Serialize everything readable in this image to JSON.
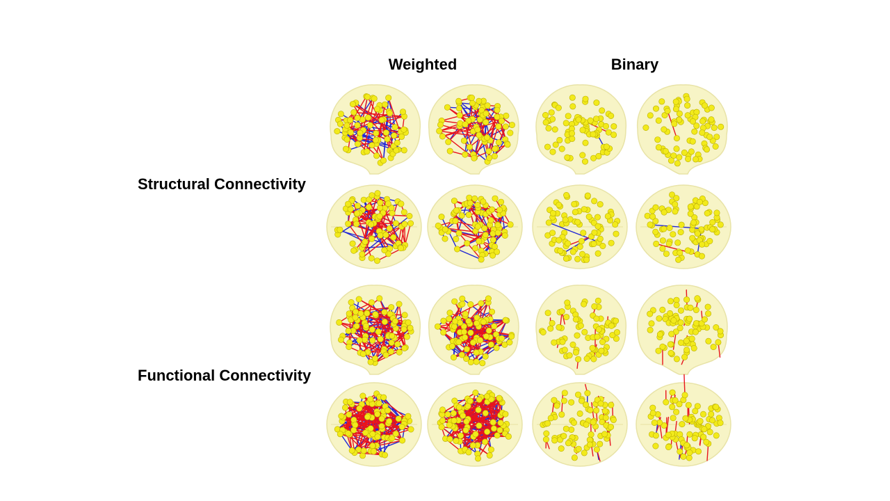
{
  "columns": [
    {
      "label": "Weighted"
    },
    {
      "label": "Binary"
    }
  ],
  "rows": [
    {
      "label": "Structural Connectivity"
    },
    {
      "label": "Functional Connectivity"
    }
  ],
  "colors": {
    "brain_fill": "#f7f4c3",
    "brain_edge": "#e7e2a3",
    "node": "#f2ea1b",
    "node_edge": "#b9ad00",
    "edge_positive": "#e8141d",
    "edge_negative": "#1f25d6"
  },
  "panels": [
    {
      "name": "structural-weighted-sagittal-left",
      "view": "side",
      "red_edges": 45,
      "blue_edges": 35,
      "nodes": 70
    },
    {
      "name": "structural-weighted-sagittal-right",
      "view": "side",
      "red_edges": 45,
      "blue_edges": 35,
      "nodes": 70
    },
    {
      "name": "structural-binary-sagittal-left",
      "view": "side",
      "red_edges": 1,
      "blue_edges": 1,
      "nodes": 75
    },
    {
      "name": "structural-binary-sagittal-right",
      "view": "side",
      "red_edges": 1,
      "blue_edges": 0,
      "nodes": 75
    },
    {
      "name": "structural-weighted-axial-left",
      "view": "top",
      "red_edges": 55,
      "blue_edges": 35,
      "nodes": 75
    },
    {
      "name": "structural-weighted-axial-right",
      "view": "top",
      "red_edges": 45,
      "blue_edges": 30,
      "nodes": 75
    },
    {
      "name": "structural-binary-axial-left",
      "view": "top",
      "red_edges": 1,
      "blue_edges": 2,
      "nodes": 80
    },
    {
      "name": "structural-binary-axial-right",
      "view": "top",
      "red_edges": 1,
      "blue_edges": 2,
      "nodes": 80
    },
    {
      "name": "functional-weighted-sagittal-left",
      "view": "side",
      "red_edges": 85,
      "blue_edges": 55,
      "nodes": 75
    },
    {
      "name": "functional-weighted-sagittal-right",
      "view": "side",
      "red_edges": 85,
      "blue_edges": 55,
      "nodes": 75
    },
    {
      "name": "functional-binary-sagittal-left",
      "view": "side",
      "red_edges": 10,
      "blue_edges": 0,
      "nodes": 75
    },
    {
      "name": "functional-binary-sagittal-right",
      "view": "side",
      "red_edges": 10,
      "blue_edges": 0,
      "nodes": 75
    },
    {
      "name": "functional-weighted-axial-left",
      "view": "top",
      "red_edges": 120,
      "blue_edges": 75,
      "nodes": 80
    },
    {
      "name": "functional-weighted-axial-right",
      "view": "top",
      "red_edges": 120,
      "blue_edges": 75,
      "nodes": 80
    },
    {
      "name": "functional-binary-axial-left",
      "view": "top",
      "red_edges": 28,
      "blue_edges": 3,
      "nodes": 80
    },
    {
      "name": "functional-binary-axial-right",
      "view": "top",
      "red_edges": 28,
      "blue_edges": 3,
      "nodes": 80
    }
  ]
}
